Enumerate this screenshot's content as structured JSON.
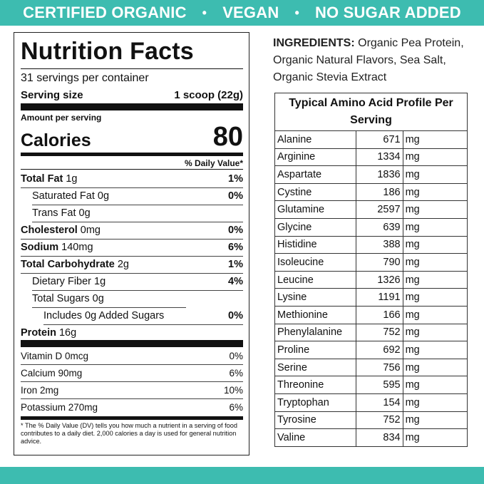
{
  "banner": {
    "item1": "CERTIFIED ORGANIC",
    "item2": "VEGAN",
    "item3": "NO SUGAR ADDED",
    "separator": "•"
  },
  "colors": {
    "accent": "#3dbcb0"
  },
  "nutrition": {
    "title": "Nutrition Facts",
    "servings": "31 servings per container",
    "serving_size_label": "Serving size",
    "serving_size_value": "1 scoop (22g)",
    "amount_per_serving": "Amount per serving",
    "calories_label": "Calories",
    "calories_value": "80",
    "dv_header": "% Daily Value*",
    "rows": [
      {
        "label": "Total Fat",
        "amount": "1g",
        "dv": "1%"
      },
      {
        "label": "Saturated Fat 0g",
        "amount": "",
        "dv": "0%"
      },
      {
        "label": "Trans Fat 0g",
        "amount": "",
        "dv": ""
      },
      {
        "label": "Cholesterol",
        "amount": "0mg",
        "dv": "0%"
      },
      {
        "label": "Sodium",
        "amount": "140mg",
        "dv": "6%"
      },
      {
        "label": "Total Carbohydrate",
        "amount": "2g",
        "dv": "1%"
      },
      {
        "label": "Dietary Fiber 1g",
        "amount": "",
        "dv": "4%"
      },
      {
        "label": "Total Sugars 0g",
        "amount": "",
        "dv": ""
      },
      {
        "label": "Includes 0g Added Sugars",
        "amount": "",
        "dv": "0%"
      },
      {
        "label": "Protein",
        "amount": "16g",
        "dv": ""
      }
    ],
    "vitamins": [
      {
        "label": "Vitamin D 0mcg",
        "dv": "0%"
      },
      {
        "label": "Calcium 90mg",
        "dv": "6%"
      },
      {
        "label": "Iron 2mg",
        "dv": "10%"
      },
      {
        "label": "Potassium 270mg",
        "dv": "6%"
      }
    ],
    "footnote_prefix": "* The % Daily Value (DV) tells you how much a nutrient in a serving of food contributes to a daily diet. 2,000 calories a day is used for general nutrition advice."
  },
  "ingredients": {
    "label": "INGREDIENTS:",
    "text": "Organic Pea Protein, Organic Natural Flavors, Sea Salt, Organic Stevia Extract"
  },
  "amino": {
    "title": "Typical Amino Acid Profile Per Serving",
    "rows": [
      {
        "name": "Alanine",
        "value": "671",
        "unit": "mg"
      },
      {
        "name": "Arginine",
        "value": "1334",
        "unit": "mg"
      },
      {
        "name": "Aspartate",
        "value": "1836",
        "unit": "mg"
      },
      {
        "name": "Cystine",
        "value": "186",
        "unit": "mg"
      },
      {
        "name": "Glutamine",
        "value": "2597",
        "unit": "mg"
      },
      {
        "name": "Glycine",
        "value": "639",
        "unit": "mg"
      },
      {
        "name": "Histidine",
        "value": "388",
        "unit": "mg"
      },
      {
        "name": "Isoleucine",
        "value": "790",
        "unit": "mg"
      },
      {
        "name": "Leucine",
        "value": "1326",
        "unit": "mg"
      },
      {
        "name": "Lysine",
        "value": "1191",
        "unit": "mg"
      },
      {
        "name": "Methionine",
        "value": "166",
        "unit": "mg"
      },
      {
        "name": "Phenylalanine",
        "value": "752",
        "unit": "mg"
      },
      {
        "name": "Proline",
        "value": "692",
        "unit": "mg"
      },
      {
        "name": "Serine",
        "value": "756",
        "unit": "mg"
      },
      {
        "name": "Threonine",
        "value": "595",
        "unit": "mg"
      },
      {
        "name": "Tryptophan",
        "value": "154",
        "unit": "mg"
      },
      {
        "name": "Tyrosine",
        "value": "752",
        "unit": "mg"
      },
      {
        "name": "Valine",
        "value": "834",
        "unit": "mg"
      }
    ]
  }
}
